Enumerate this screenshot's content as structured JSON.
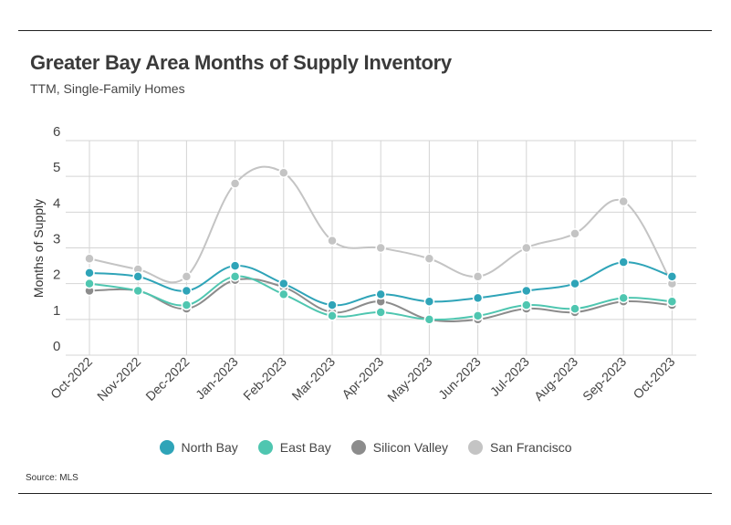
{
  "title": "Greater Bay Area Months of Supply Inventory",
  "subtitle": "TTM, Single-Family Homes",
  "source": "Source: MLS",
  "chart_data": {
    "type": "line",
    "ylabel": "Months of Supply",
    "ylim": [
      0,
      6
    ],
    "yticks": [
      0,
      1,
      2,
      3,
      4,
      5,
      6
    ],
    "grid": true,
    "legend_position": "bottom",
    "categories": [
      "Oct-2022",
      "Nov-2022",
      "Dec-2022",
      "Jan-2023",
      "Feb-2023",
      "Mar-2023",
      "Apr-2023",
      "May-2023",
      "Jun-2023",
      "Jul-2023",
      "Aug-2023",
      "Sep-2023",
      "Oct-2023"
    ],
    "series": [
      {
        "name": "North Bay",
        "color": "#2fa4b8",
        "values": [
          2.3,
          2.2,
          1.8,
          2.5,
          2.0,
          1.4,
          1.7,
          1.5,
          1.6,
          1.8,
          2.0,
          2.6,
          2.2
        ]
      },
      {
        "name": "East Bay",
        "color": "#4fc6b0",
        "values": [
          2.0,
          1.8,
          1.4,
          2.2,
          1.7,
          1.1,
          1.2,
          1.0,
          1.1,
          1.4,
          1.3,
          1.6,
          1.5
        ]
      },
      {
        "name": "Silicon Valley",
        "color": "#8c8c8c",
        "values": [
          1.8,
          1.8,
          1.3,
          2.1,
          1.9,
          1.2,
          1.5,
          1.0,
          1.0,
          1.3,
          1.2,
          1.5,
          1.4
        ]
      },
      {
        "name": "San Francisco",
        "color": "#c4c4c4",
        "values": [
          2.7,
          2.4,
          2.2,
          4.8,
          5.1,
          3.2,
          3.0,
          2.7,
          2.2,
          3.0,
          3.4,
          4.3,
          2.0
        ]
      }
    ]
  }
}
